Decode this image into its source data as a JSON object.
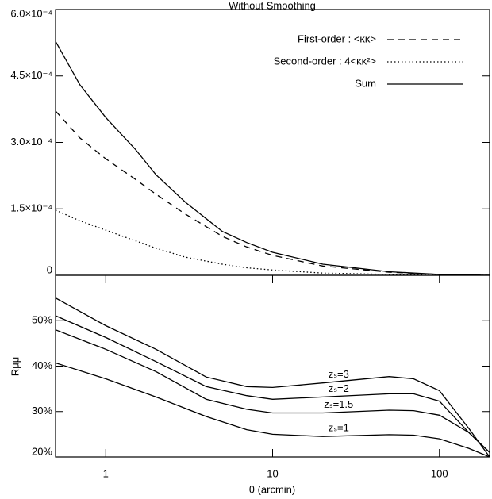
{
  "chart_data": [
    {
      "type": "line",
      "title": "Without Smoothing",
      "log_x": true,
      "xlim": [
        0.5,
        200
      ],
      "ylim": [
        0,
        0.0006
      ],
      "yticks": [
        0,
        {
          "value": 0.00015,
          "label": "1.5×10⁻⁴"
        },
        {
          "value": 0.0003,
          "label": "3.0×10⁻⁴"
        },
        {
          "value": 0.00045,
          "label": "4.5×10⁻⁴"
        },
        {
          "value": 0.0006,
          "label": "6.0×10⁻⁴"
        }
      ],
      "x": [
        0.5,
        0.7,
        1,
        1.5,
        2,
        3,
        5,
        7,
        10,
        20,
        50,
        100,
        200
      ],
      "legend": "upper right",
      "series": [
        {
          "name": "First-order : <κκ>",
          "color": "#000",
          "dash": "dashed",
          "values": [
            0.000371,
            0.00031,
            0.000263,
            0.000217,
            0.000183,
            0.000138,
            8.8e-05,
            6.4e-05,
            4.5e-05,
            2.1e-05,
            7e-06,
            2e-06,
            0
          ]
        },
        {
          "name": "Second-order : 4<κκ²>",
          "color": "#000",
          "dash": "dotted",
          "values": [
            0.000147,
            0.000123,
            0.000102,
            7.8e-05,
            6.1e-05,
            4.1e-05,
            2.5e-05,
            1.7e-05,
            1.2e-05,
            5e-06,
            2e-06,
            5e-07,
            0
          ]
        },
        {
          "name": "Sum",
          "color": "#000",
          "dash": "solid",
          "values": [
            0.000528,
            0.00043,
            0.000356,
            0.000285,
            0.000227,
            0.000165,
            9.9e-05,
            7.4e-05,
            5.2e-05,
            2.5e-05,
            8e-06,
            2e-06,
            0
          ]
        }
      ]
    },
    {
      "type": "line",
      "log_x": true,
      "xlabel": "θ (arcmin)",
      "ylabel": "Rμμ",
      "xlim": [
        0.5,
        200
      ],
      "ylim": [
        20,
        60
      ],
      "xticks": [
        1,
        10,
        100
      ],
      "yticks": [
        {
          "value": 20,
          "label": "20%"
        },
        {
          "value": 30,
          "label": "30%"
        },
        {
          "value": 40,
          "label": "40%"
        },
        {
          "value": 50,
          "label": "50%"
        }
      ],
      "x": [
        0.5,
        1,
        2,
        4,
        7,
        10,
        20,
        50,
        70,
        100,
        150,
        200
      ],
      "series": [
        {
          "name": "zₛ=3",
          "color": "#000",
          "values": [
            55,
            48.9,
            43.7,
            37.6,
            35.5,
            35.3,
            36.3,
            37.7,
            37.2,
            34.6,
            26.3,
            20
          ]
        },
        {
          "name": "zₛ=2",
          "color": "#000",
          "values": [
            51.1,
            46.3,
            41,
            35.5,
            33.5,
            32.7,
            33.2,
            33.9,
            33.9,
            32.3,
            25.4,
            21
          ]
        },
        {
          "name": "zₛ=1.5",
          "color": "#000",
          "values": [
            48,
            43.7,
            38.8,
            32.7,
            30.5,
            29.7,
            29.7,
            30.3,
            30.2,
            29.2,
            25.4,
            21
          ]
        },
        {
          "name": "zₛ=1",
          "color": "#000",
          "values": [
            40.7,
            37.2,
            33.2,
            28.9,
            26,
            25,
            24.5,
            24.9,
            24.8,
            24,
            21.9,
            20
          ]
        }
      ]
    }
  ]
}
